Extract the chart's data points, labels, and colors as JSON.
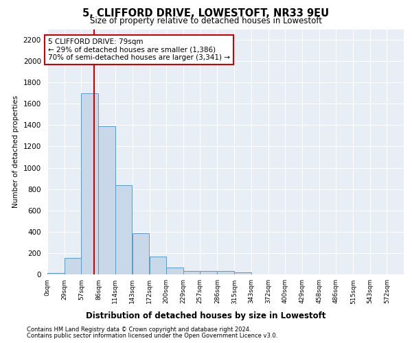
{
  "title": "5, CLIFFORD DRIVE, LOWESTOFT, NR33 9EU",
  "subtitle": "Size of property relative to detached houses in Lowestoft",
  "xlabel": "Distribution of detached houses by size in Lowestoft",
  "ylabel": "Number of detached properties",
  "bar_values": [
    15,
    155,
    1700,
    1390,
    835,
    385,
    165,
    65,
    35,
    30,
    30,
    20,
    0,
    0,
    0,
    0,
    0,
    0,
    0,
    0
  ],
  "bar_left_edges": [
    0,
    29,
    57,
    86,
    114,
    143,
    172,
    200,
    229,
    257,
    286,
    315,
    343,
    372,
    400,
    429,
    458,
    486,
    515,
    543
  ],
  "bar_width": 28.5,
  "tick_labels": [
    "0sqm",
    "29sqm",
    "57sqm",
    "86sqm",
    "114sqm",
    "143sqm",
    "172sqm",
    "200sqm",
    "229sqm",
    "257sqm",
    "286sqm",
    "315sqm",
    "343sqm",
    "372sqm",
    "400sqm",
    "429sqm",
    "458sqm",
    "486sqm",
    "515sqm",
    "543sqm",
    "572sqm"
  ],
  "bar_color": "#c8d8e8",
  "bar_edge_color": "#5a9ac8",
  "vline_x": 79,
  "vline_color": "#cc0000",
  "annotation_line1": "5 CLIFFORD DRIVE: 79sqm",
  "annotation_line2": "← 29% of detached houses are smaller (1,386)",
  "annotation_line3": "70% of semi-detached houses are larger (3,341) →",
  "annotation_box_color": "#ffffff",
  "annotation_box_edge": "#cc0000",
  "ylim": [
    0,
    2300
  ],
  "yticks": [
    0,
    200,
    400,
    600,
    800,
    1000,
    1200,
    1400,
    1600,
    1800,
    2000,
    2200
  ],
  "bg_color": "#e8eef5",
  "footer_line1": "Contains HM Land Registry data © Crown copyright and database right 2024.",
  "footer_line2": "Contains public sector information licensed under the Open Government Licence v3.0."
}
